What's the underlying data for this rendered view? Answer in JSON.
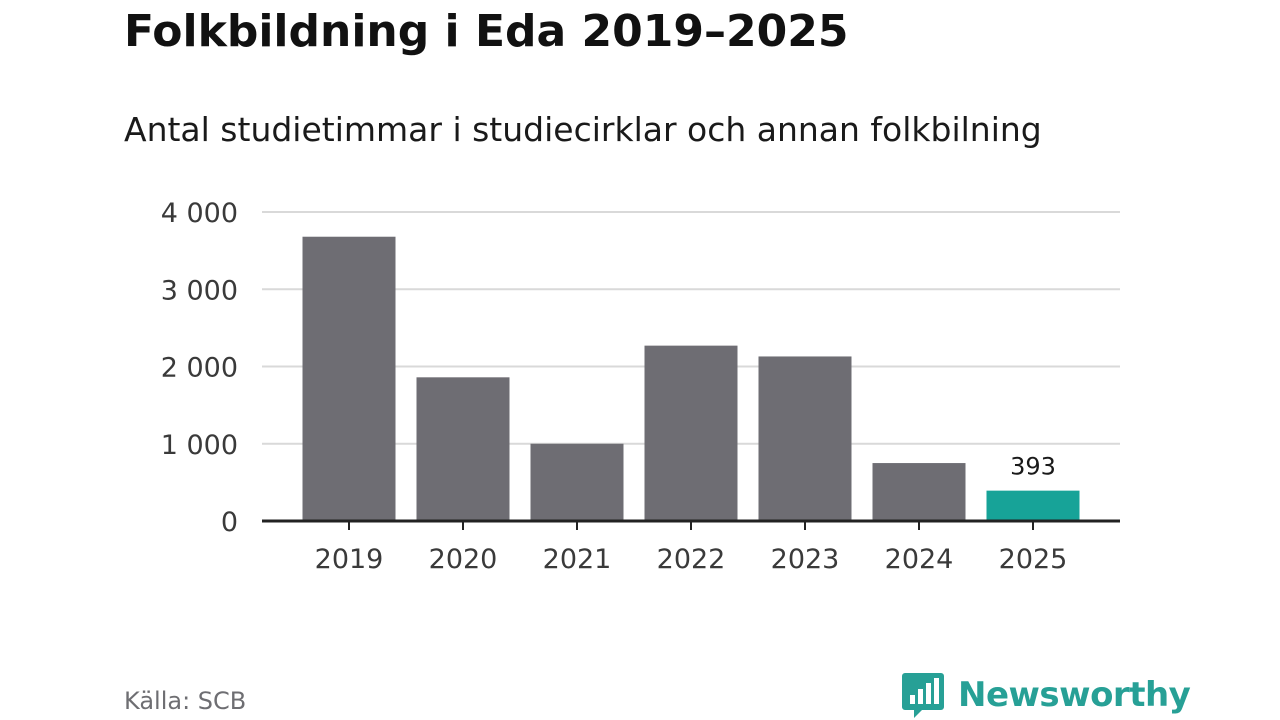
{
  "title": "Folkbildning i Eda 2019–2025",
  "subtitle": "Antal studietimmar i studiecirklar och annan folkbilning",
  "source": "Källa: SCB",
  "brand": {
    "name": "Newsworthy",
    "logo_icon": "bar-chart-speech-bubble-icon"
  },
  "colors": {
    "bar": "#6e6d73",
    "highlight": "#17a398",
    "grid": "#d9d9d9",
    "axis": "#222222",
    "brand": "#27a096"
  },
  "chart_data": {
    "type": "bar",
    "categories": [
      "2019",
      "2020",
      "2021",
      "2022",
      "2023",
      "2024",
      "2025"
    ],
    "values": [
      3680,
      1860,
      1000,
      2270,
      2130,
      750,
      393
    ],
    "highlight_index": 6,
    "data_labels": [
      {
        "category": "2025",
        "text": "393"
      }
    ],
    "yticks": [
      {
        "value": 0,
        "label": "0"
      },
      {
        "value": 1000,
        "label": "1 000"
      },
      {
        "value": 2000,
        "label": "2 000"
      },
      {
        "value": 3000,
        "label": "3 000"
      },
      {
        "value": 4000,
        "label": "4 000"
      }
    ],
    "ylim": [
      0,
      4000
    ],
    "grid": true,
    "legend": "none"
  }
}
